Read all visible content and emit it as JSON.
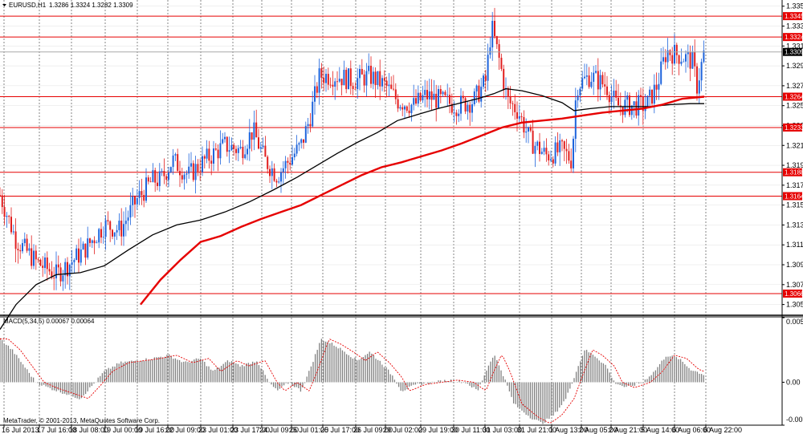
{
  "header": {
    "symbol_label": "EURUSD,H1",
    "ohlc": "1.3286 1.3324 1.3282 1.3309"
  },
  "macd_header": "MACD(5,34,5) 0.00067 0.00064",
  "copyright": "MetaTrader, © 2001-2013, MetaQuotes Software Corp.",
  "colors": {
    "bull_candle": "#1e64dc",
    "bear_candle": "#e11e1e",
    "ma_fast": "#000000",
    "ma_slow": "#e60000",
    "levels": "#e60000",
    "grid": "#000000",
    "macd_hist": "#808080",
    "macd_signal": "#e60000"
  },
  "chart_data": [
    {
      "type": "candlestick",
      "symbol": "EURUSD",
      "timeframe": "H1",
      "grid": true,
      "ylim": [
        1.3045,
        1.3358
      ],
      "y_ticks": [
        "1.3355",
        "1.3335",
        "1.3315",
        "1.3295",
        "1.3275",
        "1.3255",
        "1.3235",
        "1.3215",
        "1.3195",
        "1.3175",
        "1.3155",
        "1.3135",
        "1.3115",
        "1.3095",
        "1.3075",
        "1.3055"
      ],
      "x_ticks": [
        "16 Jul 2013",
        "17 Jul 16:00",
        "18 Jul 08:00",
        "19 Jul 00:00",
        "19 Jul 16:00",
        "22 Jul 09:00",
        "23 Jul 01:00",
        "23 Jul 17:00",
        "24 Jul 09:00",
        "25 Jul 01:00",
        "25 Jul 17:00",
        "26 Jul 09:00",
        "29 Jul 02:00",
        "29 Jul 19:00",
        "30 Jul 11:00",
        "31 Jul 03:00",
        "31 Jul 21:00",
        "1 Aug 13:00",
        "2 Aug 05:00",
        "2 Aug 21:00",
        "5 Aug 14:00",
        "6 Aug 06:00",
        "6 Aug 22:00"
      ],
      "current_price": "1.3309",
      "levels": [
        "1.3345",
        "1.3324",
        "1.3264",
        "1.3233",
        "1.3188",
        "1.3164",
        "1.3066"
      ],
      "price_path": [
        [
          0,
          1.3165
        ],
        [
          20,
          1.312
        ],
        [
          45,
          1.3098
        ],
        [
          70,
          1.3085
        ],
        [
          85,
          1.3095
        ],
        [
          105,
          1.311
        ],
        [
          130,
          1.3135
        ],
        [
          150,
          1.313
        ],
        [
          170,
          1.316
        ],
        [
          190,
          1.318
        ],
        [
          200,
          1.318
        ],
        [
          215,
          1.32
        ],
        [
          235,
          1.3185
        ],
        [
          255,
          1.32
        ],
        [
          280,
          1.3215
        ],
        [
          300,
          1.321
        ],
        [
          315,
          1.323
        ],
        [
          330,
          1.32
        ],
        [
          345,
          1.3185
        ],
        [
          360,
          1.32
        ],
        [
          375,
          1.3215
        ],
        [
          385,
          1.324
        ],
        [
          398,
          1.3285
        ],
        [
          420,
          1.3285
        ],
        [
          440,
          1.328
        ],
        [
          460,
          1.3285
        ],
        [
          480,
          1.3275
        ],
        [
          495,
          1.326
        ],
        [
          515,
          1.3255
        ],
        [
          530,
          1.3265
        ],
        [
          550,
          1.326
        ],
        [
          570,
          1.3255
        ],
        [
          590,
          1.326
        ],
        [
          605,
          1.328
        ],
        [
          612,
          1.3335
        ],
        [
          622,
          1.33
        ],
        [
          632,
          1.326
        ],
        [
          645,
          1.325
        ],
        [
          660,
          1.322
        ],
        [
          680,
          1.3205
        ],
        [
          700,
          1.321
        ],
        [
          712,
          1.32
        ],
        [
          718,
          1.3275
        ],
        [
          735,
          1.3285
        ],
        [
          755,
          1.3275
        ],
        [
          768,
          1.3255
        ],
        [
          785,
          1.3255
        ],
        [
          805,
          1.3255
        ],
        [
          818,
          1.3275
        ],
        [
          830,
          1.331
        ],
        [
          848,
          1.3305
        ],
        [
          862,
          1.33
        ],
        [
          868,
          1.3275
        ],
        [
          877,
          1.3309
        ]
      ],
      "series": [
        {
          "name": "",
          "values": [
            [
              0,
              1.303
            ],
            [
              20,
              1.3055
            ],
            [
              45,
              1.3075
            ],
            [
              70,
              1.3085
            ],
            [
              100,
              1.3087
            ],
            [
              130,
              1.3094
            ],
            [
              160,
              1.311
            ],
            [
              190,
              1.3125
            ],
            [
              220,
              1.3135
            ],
            [
              250,
              1.314
            ],
            [
              280,
              1.3148
            ],
            [
              310,
              1.3158
            ],
            [
              340,
              1.317
            ],
            [
              370,
              1.3183
            ],
            [
              395,
              1.3195
            ],
            [
              420,
              1.3207
            ],
            [
              445,
              1.3218
            ],
            [
              470,
              1.3228
            ],
            [
              495,
              1.324
            ],
            [
              520,
              1.3246
            ],
            [
              545,
              1.3252
            ],
            [
              570,
              1.3257
            ],
            [
              595,
              1.3262
            ],
            [
              615,
              1.3267
            ],
            [
              630,
              1.3272
            ],
            [
              650,
              1.327
            ],
            [
              675,
              1.3265
            ],
            [
              700,
              1.3258
            ],
            [
              715,
              1.325
            ],
            [
              735,
              1.3252
            ],
            [
              760,
              1.3254
            ],
            [
              785,
              1.3254
            ],
            [
              810,
              1.3254
            ],
            [
              835,
              1.3256
            ],
            [
              860,
              1.3257
            ],
            [
              877,
              1.3257
            ]
          ]
        },
        {
          "name": "",
          "values": [
            [
              175,
              1.3055
            ],
            [
              200,
              1.308
            ],
            [
              225,
              1.31
            ],
            [
              250,
              1.3118
            ],
            [
              275,
              1.3124
            ],
            [
              300,
              1.3133
            ],
            [
              325,
              1.3141
            ],
            [
              350,
              1.3148
            ],
            [
              375,
              1.3155
            ],
            [
              400,
              1.3165
            ],
            [
              425,
              1.3175
            ],
            [
              450,
              1.3185
            ],
            [
              475,
              1.3193
            ],
            [
              500,
              1.3198
            ],
            [
              525,
              1.3204
            ],
            [
              550,
              1.321
            ],
            [
              575,
              1.3217
            ],
            [
              600,
              1.3225
            ],
            [
              625,
              1.3233
            ],
            [
              650,
              1.3238
            ],
            [
              675,
              1.324
            ],
            [
              700,
              1.3242
            ],
            [
              725,
              1.3245
            ],
            [
              750,
              1.3248
            ],
            [
              775,
              1.325
            ],
            [
              800,
              1.3252
            ],
            [
              825,
              1.3256
            ],
            [
              850,
              1.3262
            ],
            [
              877,
              1.3264
            ]
          ]
        }
      ]
    },
    {
      "type": "bar",
      "title": "MACD(5,34,5) 0.00067 0.00064",
      "ylim": [
        -0.00396,
        0.00596
      ],
      "y_ticks": [
        "0.00596",
        "0.00",
        "-0.00396"
      ],
      "macd_path": [
        [
          0,
          0.004
        ],
        [
          15,
          0.003
        ],
        [
          30,
          0.0015
        ],
        [
          45,
          0.0
        ],
        [
          60,
          -0.0005
        ],
        [
          80,
          -0.001
        ],
        [
          100,
          -0.0015
        ],
        [
          115,
          -0.0003
        ],
        [
          130,
          0.001
        ],
        [
          150,
          0.0018
        ],
        [
          170,
          0.002
        ],
        [
          190,
          0.0022
        ],
        [
          210,
          0.0025
        ],
        [
          230,
          0.0018
        ],
        [
          250,
          0.0022
        ],
        [
          265,
          0.001
        ],
        [
          285,
          0.002
        ],
        [
          300,
          0.0015
        ],
        [
          320,
          0.002
        ],
        [
          335,
          0.0
        ],
        [
          345,
          -0.0008
        ],
        [
          360,
          0.0
        ],
        [
          375,
          -0.0008
        ],
        [
          385,
          0.001
        ],
        [
          400,
          0.004
        ],
        [
          415,
          0.0035
        ],
        [
          430,
          0.0028
        ],
        [
          445,
          0.002
        ],
        [
          460,
          0.0028
        ],
        [
          475,
          0.0018
        ],
        [
          490,
          0.0005
        ],
        [
          500,
          -0.0008
        ],
        [
          520,
          -0.0002
        ],
        [
          540,
          0.0
        ],
        [
          560,
          0.0002
        ],
        [
          580,
          0.0
        ],
        [
          595,
          -0.0008
        ],
        [
          605,
          0.001
        ],
        [
          615,
          0.0026
        ],
        [
          625,
          0.001
        ],
        [
          640,
          -0.002
        ],
        [
          660,
          -0.0032
        ],
        [
          675,
          -0.0038
        ],
        [
          690,
          -0.003
        ],
        [
          705,
          -0.0015
        ],
        [
          715,
          0.0005
        ],
        [
          728,
          0.003
        ],
        [
          740,
          0.0025
        ],
        [
          755,
          0.0015
        ],
        [
          765,
          0.0
        ],
        [
          780,
          -0.0005
        ],
        [
          800,
          0.0
        ],
        [
          815,
          0.001
        ],
        [
          830,
          0.0025
        ],
        [
          845,
          0.0022
        ],
        [
          860,
          0.0012
        ],
        [
          877,
          0.0007
        ]
      ]
    }
  ]
}
